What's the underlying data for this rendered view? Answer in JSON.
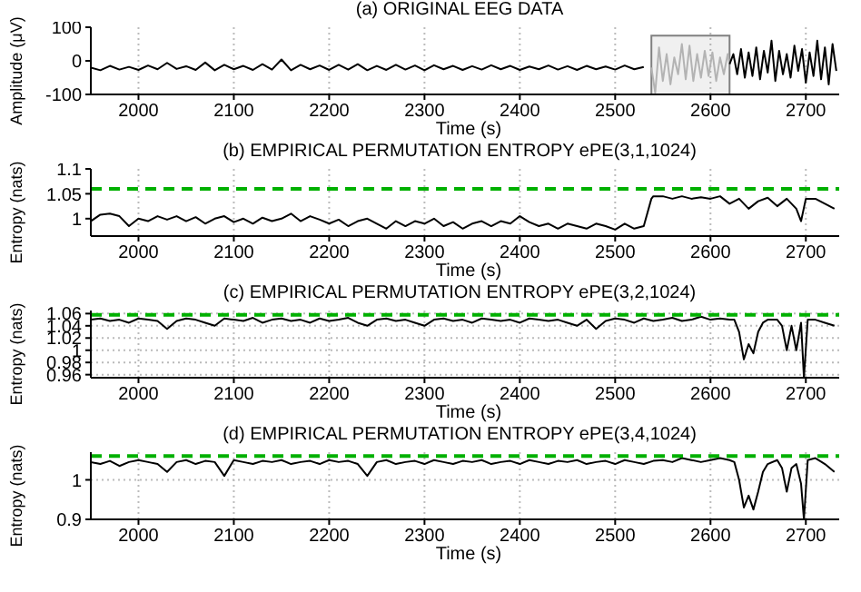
{
  "chart_data": [
    {
      "type": "line",
      "title": "(a) ORIGINAL EEG DATA",
      "xlabel": "Time (s)",
      "ylabel": "Amplitude (μV)",
      "xlim": [
        1950,
        2735
      ],
      "xticks": [
        2000,
        2100,
        2200,
        2300,
        2400,
        2500,
        2600,
        2700
      ],
      "ylim": [
        -100,
        100
      ],
      "yticks": [
        -100,
        0,
        100
      ],
      "grid": "x",
      "bands": [
        {
          "axis": "x",
          "from": 2538,
          "to": 2620,
          "color": "#808080"
        }
      ],
      "series": [
        {
          "color": "#000000",
          "x": [
            1950,
            1960,
            1970,
            1980,
            1990,
            2000,
            2010,
            2020,
            2030,
            2040,
            2050,
            2060,
            2070,
            2080,
            2090,
            2100,
            2110,
            2120,
            2130,
            2140,
            2150,
            2160,
            2170,
            2180,
            2190,
            2200,
            2210,
            2220,
            2230,
            2240,
            2250,
            2260,
            2270,
            2280,
            2290,
            2300,
            2310,
            2320,
            2330,
            2340,
            2350,
            2360,
            2370,
            2380,
            2390,
            2400,
            2410,
            2420,
            2430,
            2440,
            2450,
            2460,
            2470,
            2480,
            2490,
            2500,
            2510,
            2520,
            2530
          ],
          "values": [
            -20,
            -28,
            -15,
            -26,
            -18,
            -27,
            -14,
            -25,
            -6,
            -24,
            -16,
            -27,
            -5,
            -28,
            -12,
            -25,
            -15,
            -27,
            -10,
            -26,
            4,
            -28,
            -12,
            -25,
            -14,
            -27,
            -12,
            -26,
            -10,
            -28,
            -15,
            -27,
            -12,
            -26,
            -14,
            -28,
            -13,
            -25,
            -15,
            -27,
            -16,
            -26,
            -13,
            -25,
            -15,
            -27,
            -17,
            -25,
            -14,
            -26,
            -16,
            -27,
            -15,
            -25,
            -17,
            -26,
            -14,
            -25,
            -18
          ]
        },
        {
          "color": "#b3b3b3",
          "x": [
            2538,
            2542,
            2546,
            2550,
            2554,
            2558,
            2562,
            2566,
            2570,
            2574,
            2578,
            2582,
            2586,
            2590,
            2594,
            2598,
            2602,
            2606,
            2610,
            2614,
            2618,
            2620
          ],
          "values": [
            -20,
            -95,
            40,
            -60,
            20,
            -70,
            10,
            -40,
            50,
            -55,
            45,
            -60,
            20,
            -50,
            30,
            -45,
            25,
            -60,
            10,
            -40,
            20,
            -10
          ]
        },
        {
          "color": "#000000",
          "x": [
            2620,
            2624,
            2628,
            2632,
            2636,
            2640,
            2644,
            2648,
            2652,
            2656,
            2660,
            2664,
            2668,
            2672,
            2676,
            2680,
            2684,
            2688,
            2692,
            2696,
            2700,
            2704,
            2708,
            2712,
            2716,
            2720,
            2724,
            2728,
            2732
          ],
          "values": [
            -10,
            20,
            -40,
            35,
            -50,
            25,
            -45,
            40,
            -55,
            30,
            -35,
            60,
            -60,
            30,
            -40,
            20,
            -50,
            45,
            -30,
            35,
            -65,
            25,
            -45,
            60,
            -55,
            40,
            -70,
            50,
            -30
          ]
        }
      ]
    },
    {
      "type": "line",
      "title": "(b) EMPIRICAL PERMUTATION ENTROPY ePE(3,1,1024)",
      "xlabel": "Time (s)",
      "ylabel": "Entropy (nats)",
      "xlim": [
        1950,
        2735
      ],
      "xticks": [
        2000,
        2100,
        2200,
        2300,
        2400,
        2500,
        2600,
        2700
      ],
      "ylim": [
        0.965,
        1.1
      ],
      "yticks": [
        1,
        1.05,
        1.1
      ],
      "grid": "x",
      "ref_lines": [
        {
          "axis": "y",
          "value": 1.06,
          "color": "#00b000",
          "line_style": "dashed"
        }
      ],
      "series": [
        {
          "color": "#000000",
          "x": [
            1950,
            1960,
            1970,
            1980,
            1990,
            2000,
            2010,
            2020,
            2030,
            2040,
            2050,
            2060,
            2070,
            2080,
            2090,
            2100,
            2110,
            2120,
            2130,
            2140,
            2150,
            2160,
            2170,
            2180,
            2190,
            2200,
            2210,
            2220,
            2230,
            2240,
            2250,
            2260,
            2270,
            2280,
            2290,
            2300,
            2310,
            2320,
            2330,
            2340,
            2350,
            2360,
            2370,
            2380,
            2390,
            2400,
            2410,
            2420,
            2430,
            2440,
            2450,
            2460,
            2470,
            2480,
            2490,
            2500,
            2510,
            2520,
            2530,
            2538,
            2540,
            2550,
            2560,
            2570,
            2580,
            2590,
            2600,
            2610,
            2620,
            2630,
            2640,
            2650,
            2660,
            2670,
            2680,
            2690,
            2695,
            2700,
            2710,
            2720,
            2730
          ],
          "values": [
            0.995,
            1.008,
            1.01,
            1.005,
            0.985,
            1,
            0.995,
            1.005,
            0.998,
            1.005,
            0.995,
            1.003,
            0.99,
            1,
            1.005,
            0.993,
            1,
            0.99,
            1.002,
            0.995,
            1,
            1.01,
            0.995,
            1.005,
            0.998,
            0.99,
            0.998,
            0.985,
            0.995,
            1,
            0.99,
            0.98,
            0.995,
            0.985,
            0.995,
            0.99,
            1,
            0.985,
            0.993,
            0.98,
            0.99,
            0.995,
            0.985,
            0.995,
            0.99,
            1.005,
            0.993,
            0.985,
            0.99,
            0.98,
            0.99,
            0.985,
            0.98,
            0.99,
            0.985,
            0.978,
            0.99,
            0.98,
            0.985,
            1.04,
            1.045,
            1.045,
            1.04,
            1.045,
            1.04,
            1.043,
            1.04,
            1.045,
            1.03,
            1.04,
            1.02,
            1.035,
            1.042,
            1.025,
            1.04,
            1.02,
            0.995,
            1.04,
            1.04,
            1.03,
            1.02
          ]
        }
      ]
    },
    {
      "type": "line",
      "title": "(c) EMPIRICAL PERMUTATION ENTROPY ePE(3,2,1024)",
      "xlabel": "Time (s)",
      "ylabel": "Entropy (nats)",
      "xlim": [
        1950,
        2735
      ],
      "xticks": [
        2000,
        2100,
        2200,
        2300,
        2400,
        2500,
        2600,
        2700
      ],
      "ylim": [
        0.955,
        1.065
      ],
      "yticks": [
        0.96,
        0.98,
        1,
        1.02,
        1.04,
        1.06
      ],
      "grid": true,
      "ref_lines": [
        {
          "axis": "y",
          "value": 1.058,
          "color": "#00b000",
          "line_style": "dashed"
        }
      ],
      "series": [
        {
          "color": "#000000",
          "x": [
            1950,
            1960,
            1970,
            1980,
            1990,
            2000,
            2010,
            2020,
            2030,
            2040,
            2050,
            2060,
            2070,
            2080,
            2090,
            2100,
            2110,
            2120,
            2130,
            2140,
            2150,
            2160,
            2170,
            2180,
            2190,
            2200,
            2210,
            2220,
            2230,
            2240,
            2250,
            2260,
            2270,
            2280,
            2290,
            2300,
            2310,
            2320,
            2330,
            2340,
            2350,
            2360,
            2370,
            2380,
            2390,
            2400,
            2410,
            2420,
            2430,
            2440,
            2450,
            2460,
            2470,
            2480,
            2490,
            2500,
            2510,
            2520,
            2530,
            2540,
            2550,
            2560,
            2570,
            2580,
            2590,
            2600,
            2610,
            2620,
            2625,
            2630,
            2635,
            2640,
            2645,
            2650,
            2655,
            2660,
            2670,
            2675,
            2680,
            2685,
            2690,
            2695,
            2698,
            2702,
            2710,
            2720,
            2730
          ],
          "values": [
            1.05,
            1.052,
            1.048,
            1.05,
            1.045,
            1.052,
            1.05,
            1.048,
            1.035,
            1.048,
            1.052,
            1.05,
            1.045,
            1.04,
            1.052,
            1.05,
            1.048,
            1.053,
            1.045,
            1.05,
            1.052,
            1.048,
            1.05,
            1.045,
            1.052,
            1.048,
            1.05,
            1.053,
            1.045,
            1.04,
            1.05,
            1.052,
            1.048,
            1.05,
            1.045,
            1.04,
            1.05,
            1.052,
            1.048,
            1.05,
            1.045,
            1.052,
            1.05,
            1.048,
            1.05,
            1.045,
            1.052,
            1.05,
            1.048,
            1.05,
            1.045,
            1.04,
            1.05,
            1.035,
            1.048,
            1.052,
            1.05,
            1.045,
            1.052,
            1.048,
            1.05,
            1.053,
            1.048,
            1.05,
            1.055,
            1.05,
            1.052,
            1.05,
            1.05,
            1.03,
            0.985,
            1.01,
            0.995,
            1.03,
            1.045,
            1.05,
            1.05,
            1.04,
            1,
            1.04,
            1,
            1.045,
            0.955,
            1.05,
            1.05,
            1.045,
            1.04
          ]
        }
      ]
    },
    {
      "type": "line",
      "title": "(d) EMPIRICAL PERMUTATION ENTROPY ePE(3,4,1024)",
      "xlabel": "Time (s)",
      "ylabel": "Entropy (nats)",
      "xlim": [
        1950,
        2735
      ],
      "xticks": [
        2000,
        2100,
        2200,
        2300,
        2400,
        2500,
        2600,
        2700
      ],
      "ylim": [
        0.9,
        1.07
      ],
      "yticks": [
        0.9,
        1
      ],
      "grid": true,
      "ref_lines": [
        {
          "axis": "y",
          "value": 1.06,
          "color": "#00b000",
          "line_style": "dashed"
        }
      ],
      "series": [
        {
          "color": "#000000",
          "x": [
            1950,
            1960,
            1970,
            1980,
            1990,
            2000,
            2010,
            2020,
            2030,
            2040,
            2050,
            2060,
            2070,
            2080,
            2090,
            2100,
            2110,
            2120,
            2130,
            2140,
            2150,
            2160,
            2170,
            2180,
            2190,
            2200,
            2210,
            2220,
            2230,
            2240,
            2250,
            2260,
            2270,
            2280,
            2290,
            2300,
            2310,
            2320,
            2330,
            2340,
            2350,
            2360,
            2370,
            2380,
            2390,
            2400,
            2410,
            2420,
            2430,
            2440,
            2450,
            2460,
            2470,
            2480,
            2490,
            2500,
            2510,
            2520,
            2530,
            2540,
            2550,
            2560,
            2570,
            2580,
            2590,
            2600,
            2610,
            2620,
            2625,
            2630,
            2635,
            2640,
            2645,
            2650,
            2655,
            2660,
            2670,
            2675,
            2680,
            2685,
            2690,
            2695,
            2698,
            2702,
            2710,
            2720,
            2730
          ],
          "values": [
            1.045,
            1.04,
            1.048,
            1.035,
            1.045,
            1.05,
            1.045,
            1.04,
            1.02,
            1.045,
            1.05,
            1.04,
            1.048,
            1.045,
            1.01,
            1.05,
            1.045,
            1.04,
            1.048,
            1.045,
            1.05,
            1.04,
            1.045,
            1.048,
            1.04,
            1.05,
            1.045,
            1.048,
            1.04,
            1.01,
            1.045,
            1.05,
            1.04,
            1.045,
            1.048,
            1.04,
            1.05,
            1.045,
            1.04,
            1.048,
            1.045,
            1.05,
            1.04,
            1.045,
            1.048,
            1.04,
            1.05,
            1.045,
            1.04,
            1.048,
            1.045,
            1.05,
            1.04,
            1.045,
            1.048,
            1.04,
            1.05,
            1.045,
            1.04,
            1.048,
            1.05,
            1.045,
            1.055,
            1.05,
            1.045,
            1.05,
            1.055,
            1.05,
            1.045,
            1,
            0.93,
            0.96,
            0.925,
            0.97,
            1.02,
            1.04,
            1.05,
            1.03,
            0.97,
            1.03,
            1.04,
            0.99,
            0.9,
            1.05,
            1.055,
            1.04,
            1.02
          ]
        }
      ]
    }
  ]
}
